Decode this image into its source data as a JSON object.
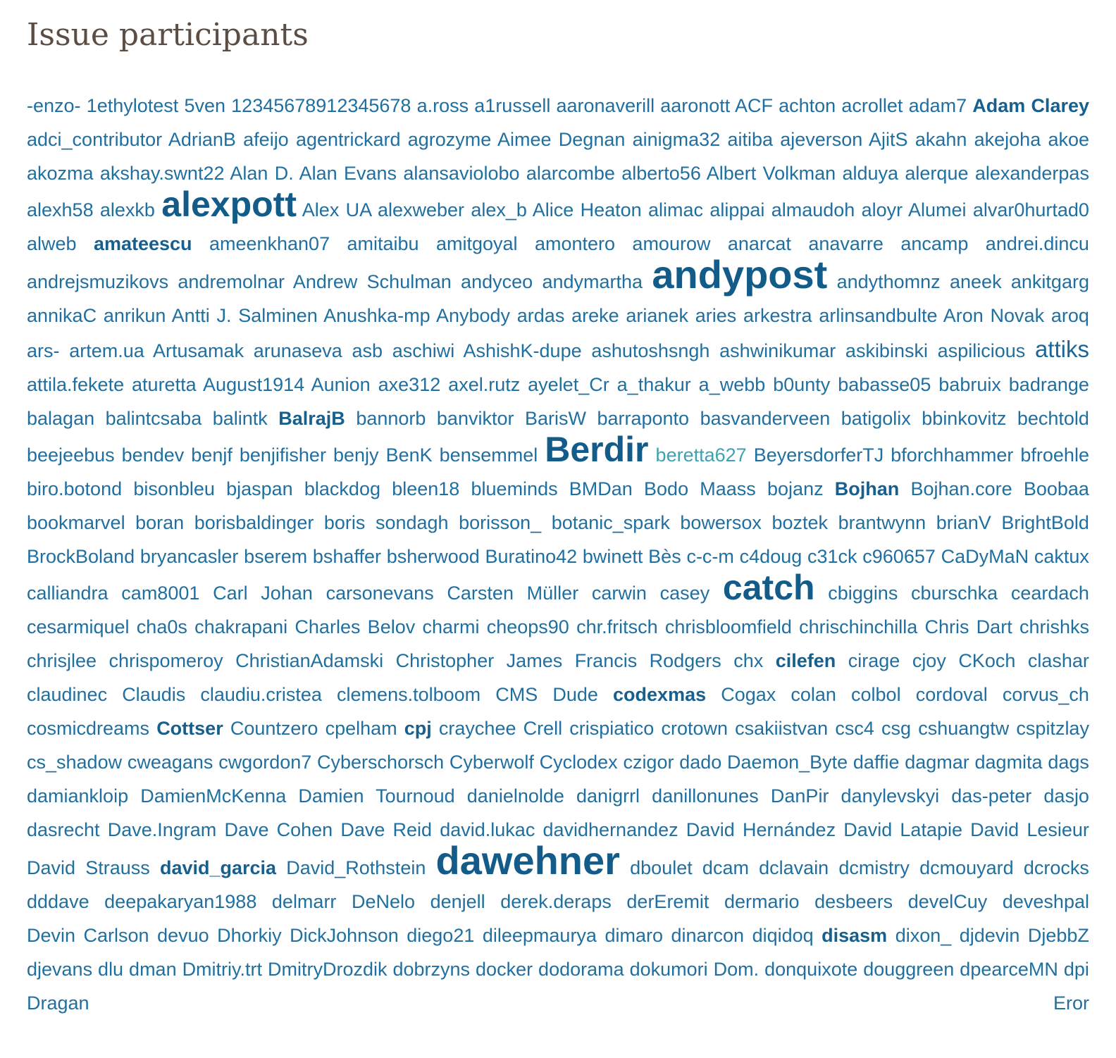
{
  "heading": "Issue participants",
  "participants": [
    [
      "-enzo-",
      1
    ],
    [
      "1ethylotest",
      1
    ],
    [
      "5ven",
      1
    ],
    [
      "12345678912345678",
      1
    ],
    [
      "a.ross",
      1
    ],
    [
      "a1russell",
      1
    ],
    [
      "aaronaverill",
      1
    ],
    [
      "aaronott",
      1
    ],
    [
      "ACF",
      1
    ],
    [
      "achton",
      1
    ],
    [
      "acrollet",
      1
    ],
    [
      "adam7",
      1
    ],
    [
      "Adam Clarey",
      2
    ],
    [
      "adci_contributor",
      1
    ],
    [
      "AdrianB",
      1
    ],
    [
      "afeijo",
      1
    ],
    [
      "agentrickard",
      1
    ],
    [
      "agrozyme",
      1
    ],
    [
      "Aimee Degnan",
      1
    ],
    [
      "ainigma32",
      1
    ],
    [
      "aitiba",
      1
    ],
    [
      "ajeverson",
      1
    ],
    [
      "AjitS",
      1
    ],
    [
      "akahn",
      1
    ],
    [
      "akejoha",
      1
    ],
    [
      "akoe",
      1
    ],
    [
      "akozma",
      1
    ],
    [
      "akshay.swnt22",
      1
    ],
    [
      "Alan D.",
      1
    ],
    [
      "Alan Evans",
      1
    ],
    [
      "alansaviolobo",
      1
    ],
    [
      "alarcombe",
      1
    ],
    [
      "alberto56",
      1
    ],
    [
      "Albert Volkman",
      1
    ],
    [
      "alduya",
      1
    ],
    [
      "alerque",
      1
    ],
    [
      "alexanderpas",
      1
    ],
    [
      "alexh58",
      1
    ],
    [
      "alexkb",
      1
    ],
    [
      "alexpott",
      4
    ],
    [
      "Alex UA",
      1
    ],
    [
      "alexweber",
      1
    ],
    [
      "alex_b",
      1
    ],
    [
      "Alice Heaton",
      1
    ],
    [
      "alimac",
      1
    ],
    [
      "alippai",
      1
    ],
    [
      "almaudoh",
      1
    ],
    [
      "aloyr",
      1
    ],
    [
      "Alumei",
      1
    ],
    [
      "alvar0hurtad0",
      1
    ],
    [
      "alweb",
      1
    ],
    [
      "amateescu",
      2
    ],
    [
      "ameenkhan07",
      1
    ],
    [
      "amitaibu",
      1
    ],
    [
      "amitgoyal",
      1
    ],
    [
      "amontero",
      1
    ],
    [
      "amourow",
      1
    ],
    [
      "anarcat",
      1
    ],
    [
      "anavarre",
      1
    ],
    [
      "ancamp",
      1
    ],
    [
      "andrei.dincu",
      1
    ],
    [
      "andrejsmuzikovs",
      1
    ],
    [
      "andremolnar",
      1
    ],
    [
      "Andrew Schulman",
      1
    ],
    [
      "andyceo",
      1
    ],
    [
      "andymartha",
      1
    ],
    [
      "andypost",
      5
    ],
    [
      "andythomnz",
      1
    ],
    [
      "aneek",
      1
    ],
    [
      "ankitgarg",
      1
    ],
    [
      "annikaC",
      1
    ],
    [
      "anrikun",
      1
    ],
    [
      "Antti J. Salminen",
      1
    ],
    [
      "Anushka-mp",
      1
    ],
    [
      "Anybody",
      1
    ],
    [
      "ardas",
      1
    ],
    [
      "areke",
      1
    ],
    [
      "arianek",
      1
    ],
    [
      "aries",
      1
    ],
    [
      "arkestra",
      1
    ],
    [
      "arlinsandbulte",
      1
    ],
    [
      "Aron Novak",
      1
    ],
    [
      "aroq",
      1
    ],
    [
      "ars-",
      1
    ],
    [
      "artem.ua",
      1
    ],
    [
      "Artusamak",
      1
    ],
    [
      "arunaseva",
      1
    ],
    [
      "asb",
      1
    ],
    [
      "aschiwi",
      1
    ],
    [
      "AshishK-dupe",
      1
    ],
    [
      "ashutoshsngh",
      1
    ],
    [
      "ashwinikumar",
      1
    ],
    [
      "askibinski",
      1
    ],
    [
      "aspilicious",
      1
    ],
    [
      "attiks",
      3
    ],
    [
      "attila.fekete",
      1
    ],
    [
      "aturetta",
      1
    ],
    [
      "August1914",
      1
    ],
    [
      "Aunion",
      1
    ],
    [
      "axe312",
      1
    ],
    [
      "axel.rutz",
      1
    ],
    [
      "ayelet_Cr",
      1
    ],
    [
      "a_thakur",
      1
    ],
    [
      "a_webb",
      1
    ],
    [
      "b0unty",
      1
    ],
    [
      "babasse05",
      1
    ],
    [
      "babruix",
      1
    ],
    [
      "badrange",
      1
    ],
    [
      "balagan",
      1
    ],
    [
      "balintcsaba",
      1
    ],
    [
      "balintk",
      1
    ],
    [
      "BalrajB",
      2
    ],
    [
      "bannorb",
      1
    ],
    [
      "banviktor",
      1
    ],
    [
      "BarisW",
      1
    ],
    [
      "barraponto",
      1
    ],
    [
      "basvanderveen",
      1
    ],
    [
      "batigolix",
      1
    ],
    [
      "bbinkovitz",
      1
    ],
    [
      "bechtold",
      1
    ],
    [
      "beejeebus",
      1
    ],
    [
      "bendev",
      1
    ],
    [
      "benjf",
      1
    ],
    [
      "benjifisher",
      1
    ],
    [
      "benjy",
      1
    ],
    [
      "BenK",
      1
    ],
    [
      "bensemmel",
      1
    ],
    [
      "Berdir",
      4
    ],
    [
      "beretta627",
      6
    ],
    [
      "BeyersdorferTJ",
      1
    ],
    [
      "bforchhammer",
      1
    ],
    [
      "bfroehle",
      1
    ],
    [
      "biro.botond",
      1
    ],
    [
      "bisonbleu",
      1
    ],
    [
      "bjaspan",
      1
    ],
    [
      "blackdog",
      1
    ],
    [
      "bleen18",
      1
    ],
    [
      "blueminds",
      1
    ],
    [
      "BMDan",
      1
    ],
    [
      "Bodo Maass",
      1
    ],
    [
      "bojanz",
      1
    ],
    [
      "Bojhan",
      2
    ],
    [
      "Bojhan.core",
      1
    ],
    [
      "Boobaa",
      1
    ],
    [
      "bookmarvel",
      1
    ],
    [
      "boran",
      1
    ],
    [
      "borisbaldinger",
      1
    ],
    [
      "boris sondagh",
      1
    ],
    [
      "borisson_",
      1
    ],
    [
      "botanic_spark",
      1
    ],
    [
      "bowersox",
      1
    ],
    [
      "boztek",
      1
    ],
    [
      "brantwynn",
      1
    ],
    [
      "brianV",
      1
    ],
    [
      "BrightBold",
      1
    ],
    [
      "BrockBoland",
      1
    ],
    [
      "bryancasler",
      1
    ],
    [
      "bserem",
      1
    ],
    [
      "bshaffer",
      1
    ],
    [
      "bsherwood",
      1
    ],
    [
      "Buratino42",
      1
    ],
    [
      "bwinett",
      1
    ],
    [
      "Bès",
      1
    ],
    [
      "c-c-m",
      1
    ],
    [
      "c4doug",
      1
    ],
    [
      "c31ck",
      1
    ],
    [
      "c960657",
      1
    ],
    [
      "CaDyMaN",
      1
    ],
    [
      "caktux",
      1
    ],
    [
      "calliandra",
      1
    ],
    [
      "cam8001",
      1
    ],
    [
      "Carl Johan",
      1
    ],
    [
      "carsonevans",
      1
    ],
    [
      "Carsten Müller",
      1
    ],
    [
      "carwin",
      1
    ],
    [
      "casey",
      1
    ],
    [
      "catch",
      4
    ],
    [
      "cbiggins",
      1
    ],
    [
      "cburschka",
      1
    ],
    [
      "ceardach",
      1
    ],
    [
      "cesarmiquel",
      1
    ],
    [
      "cha0s",
      1
    ],
    [
      "chakrapani",
      1
    ],
    [
      "Charles Belov",
      1
    ],
    [
      "charmi",
      1
    ],
    [
      "cheops90",
      1
    ],
    [
      "chr.fritsch",
      1
    ],
    [
      "chrisbloomfield",
      1
    ],
    [
      "chrischinchilla",
      1
    ],
    [
      "Chris Dart",
      1
    ],
    [
      "chrishks",
      1
    ],
    [
      "chrisjlee",
      1
    ],
    [
      "chrispomeroy",
      1
    ],
    [
      "ChristianAdamski",
      1
    ],
    [
      "Christopher James Francis Rodgers",
      1
    ],
    [
      "chx",
      1
    ],
    [
      "cilefen",
      2
    ],
    [
      "cirage",
      1
    ],
    [
      "cjoy",
      1
    ],
    [
      "CKoch",
      1
    ],
    [
      "clashar",
      1
    ],
    [
      "claudinec",
      1
    ],
    [
      "Claudis",
      1
    ],
    [
      "claudiu.cristea",
      1
    ],
    [
      "clemens.tolboom",
      1
    ],
    [
      "CMS Dude",
      1
    ],
    [
      "codexmas",
      2
    ],
    [
      "Cogax",
      1
    ],
    [
      "colan",
      1
    ],
    [
      "colbol",
      1
    ],
    [
      "cordoval",
      1
    ],
    [
      "corvus_ch",
      1
    ],
    [
      "cosmicdreams",
      1
    ],
    [
      "Cottser",
      2
    ],
    [
      "Countzero",
      1
    ],
    [
      "cpelham",
      1
    ],
    [
      "cpj",
      2
    ],
    [
      "craychee",
      1
    ],
    [
      "Crell",
      1
    ],
    [
      "crispiatico",
      1
    ],
    [
      "crotown",
      1
    ],
    [
      "csakiistvan",
      1
    ],
    [
      "csc4",
      1
    ],
    [
      "csg",
      1
    ],
    [
      "cshuangtw",
      1
    ],
    [
      "cspitzlay",
      1
    ],
    [
      "cs_shadow",
      1
    ],
    [
      "cweagans",
      1
    ],
    [
      "cwgordon7",
      1
    ],
    [
      "Cyberschorsch",
      1
    ],
    [
      "Cyberwolf",
      1
    ],
    [
      "Cyclodex",
      1
    ],
    [
      "czigor",
      1
    ],
    [
      "dado",
      1
    ],
    [
      "Daemon_Byte",
      1
    ],
    [
      "daffie",
      1
    ],
    [
      "dagmar",
      1
    ],
    [
      "dagmita",
      1
    ],
    [
      "dags",
      1
    ],
    [
      "damiankloip",
      1
    ],
    [
      "DamienMcKenna",
      1
    ],
    [
      "Damien Tournoud",
      1
    ],
    [
      "danielnolde",
      1
    ],
    [
      "danigrrl",
      1
    ],
    [
      "danillonunes",
      1
    ],
    [
      "DanPir",
      1
    ],
    [
      "danylevskyi",
      1
    ],
    [
      "das-peter",
      1
    ],
    [
      "dasjo",
      1
    ],
    [
      "dasrecht",
      1
    ],
    [
      "Dave.Ingram",
      1
    ],
    [
      "Dave Cohen",
      1
    ],
    [
      "Dave Reid",
      1
    ],
    [
      "david.lukac",
      1
    ],
    [
      "davidhernandez",
      1
    ],
    [
      "David Hernández",
      1
    ],
    [
      "David Latapie",
      1
    ],
    [
      "David Lesieur",
      1
    ],
    [
      "David Strauss",
      1
    ],
    [
      "david_garcia",
      2
    ],
    [
      "David_Rothstein",
      1
    ],
    [
      "dawehner",
      5
    ],
    [
      "dboulet",
      1
    ],
    [
      "dcam",
      1
    ],
    [
      "dclavain",
      1
    ],
    [
      "dcmistry",
      1
    ],
    [
      "dcmouyard",
      1
    ],
    [
      "dcrocks",
      1
    ],
    [
      "dddave",
      1
    ],
    [
      "deepakaryan1988",
      1
    ],
    [
      "delmarr",
      1
    ],
    [
      "DeNelo",
      1
    ],
    [
      "denjell",
      1
    ],
    [
      "derek.deraps",
      1
    ],
    [
      "derEremit",
      1
    ],
    [
      "dermario",
      1
    ],
    [
      "desbeers",
      1
    ],
    [
      "develCuy",
      1
    ],
    [
      "deveshpal",
      1
    ],
    [
      "Devin Carlson",
      1
    ],
    [
      "devuo",
      1
    ],
    [
      "Dhorkiy",
      1
    ],
    [
      "DickJohnson",
      1
    ],
    [
      "diego21",
      1
    ],
    [
      "dileepmaurya",
      1
    ],
    [
      "dimaro",
      1
    ],
    [
      "dinarcon",
      1
    ],
    [
      "diqidoq",
      1
    ],
    [
      "disasm",
      2
    ],
    [
      "dixon_",
      1
    ],
    [
      "djdevin",
      1
    ],
    [
      "DjebbZ",
      1
    ],
    [
      "djevans",
      1
    ],
    [
      "dlu",
      1
    ],
    [
      "dman",
      1
    ],
    [
      "Dmitriy.trt",
      1
    ],
    [
      "DmitryDrozdik",
      1
    ],
    [
      "dobrzyns",
      1
    ],
    [
      "docker",
      1
    ],
    [
      "dodorama",
      1
    ],
    [
      "dokumori",
      1
    ],
    [
      "Dom.",
      1
    ],
    [
      "donquixote",
      1
    ],
    [
      "douggreen",
      1
    ],
    [
      "dpearceMN",
      1
    ],
    [
      "dpi",
      1
    ],
    [
      "Dragan Eror",
      1
    ]
  ]
}
